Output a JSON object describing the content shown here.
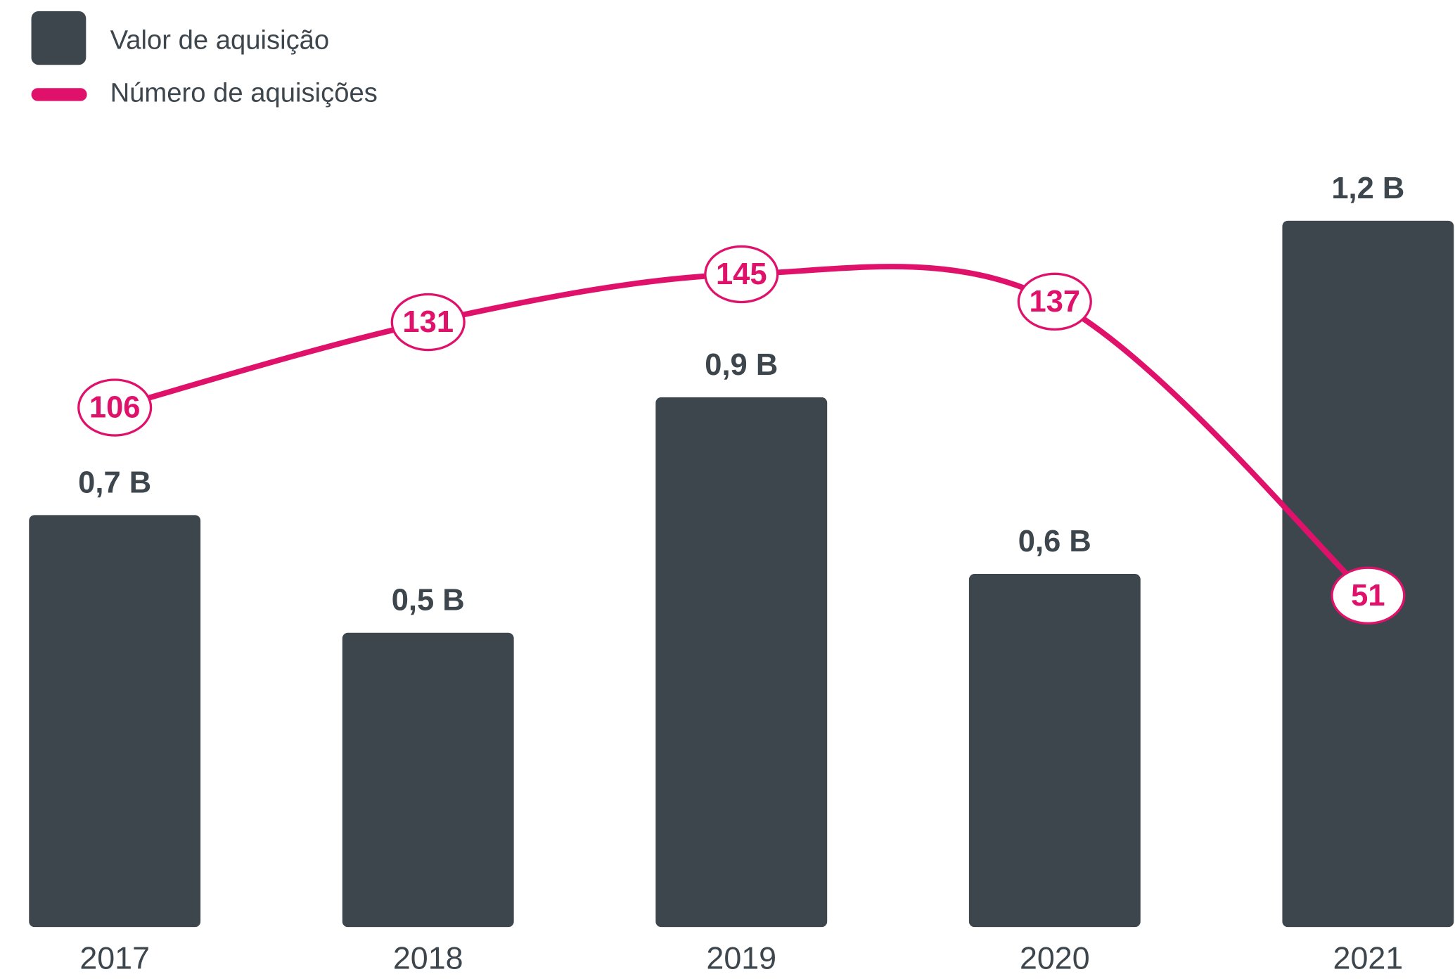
{
  "chart_data": {
    "type": "bar",
    "categories": [
      "2017",
      "2018",
      "2019",
      "2020",
      "2021"
    ],
    "series": [
      {
        "name": "Valor de aquisição",
        "type": "bar",
        "color": "#3d464d",
        "values": [
          0.7,
          0.5,
          0.9,
          0.6,
          1.2
        ],
        "value_labels": [
          "0,7 B",
          "0,5 B",
          "0,9 B",
          "0,6 B",
          "1,2 B"
        ]
      },
      {
        "name": "Número de aquisições",
        "type": "line",
        "axis": "y2",
        "color": "#e0116b",
        "values": [
          106,
          131,
          145,
          137,
          51
        ]
      }
    ],
    "ylim": [
      0,
      1.26
    ],
    "y2lim": [
      -46,
      171
    ],
    "legend": "top-left"
  }
}
